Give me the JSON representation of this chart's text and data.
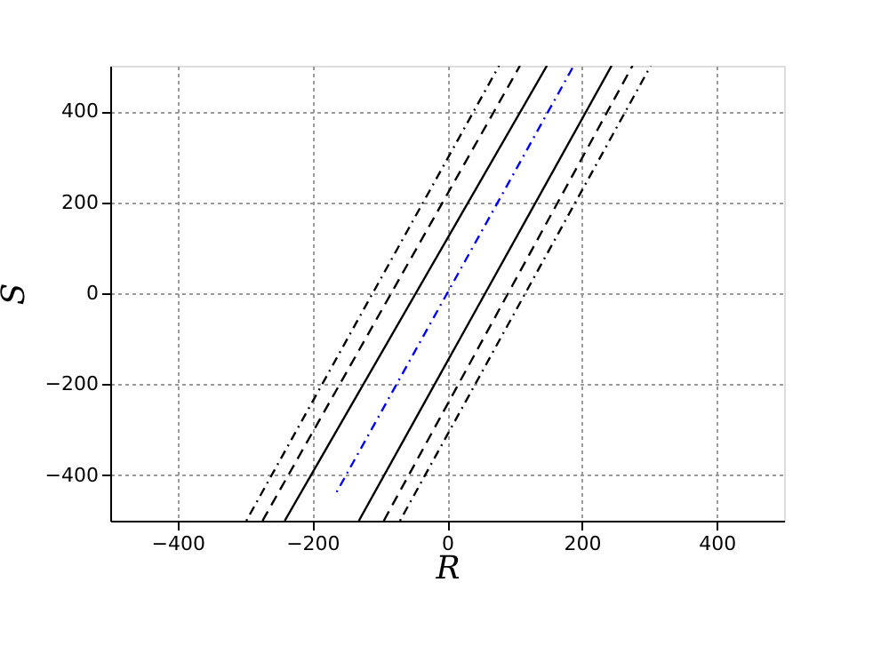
{
  "chart_data": {
    "type": "line",
    "xlabel": "R",
    "ylabel": "S",
    "xlim": [
      -500,
      500
    ],
    "ylim": [
      -500,
      500
    ],
    "xticks": [
      -400,
      -200,
      0,
      200,
      400
    ],
    "yticks": [
      -400,
      -200,
      0,
      200,
      400
    ],
    "grid": true,
    "marker": "none",
    "series": [
      {
        "color": "#000000",
        "line_style": "dotted",
        "x": [
          -298,
          77
        ],
        "values": [
          -500,
          500
        ]
      },
      {
        "color": "#000000",
        "line_style": "dashed",
        "x": [
          -274,
          108
        ],
        "values": [
          -500,
          500
        ]
      },
      {
        "color": "#000000",
        "line_style": "solid",
        "x": [
          -241,
          148
        ],
        "values": [
          -500,
          500
        ]
      },
      {
        "color": "#0000ff",
        "line_style": "dotted",
        "x": [
          -164,
          187
        ],
        "values": [
          -437,
          498
        ]
      },
      {
        "color": "#000000",
        "line_style": "solid",
        "x": [
          -131,
          244
        ],
        "values": [
          -500,
          500
        ]
      },
      {
        "color": "#000000",
        "line_style": "dashed",
        "x": [
          -94,
          275
        ],
        "values": [
          -500,
          500
        ]
      },
      {
        "color": "#000000",
        "line_style": "dotted",
        "x": [
          -70,
          302
        ],
        "values": [
          -500,
          500
        ]
      }
    ]
  }
}
